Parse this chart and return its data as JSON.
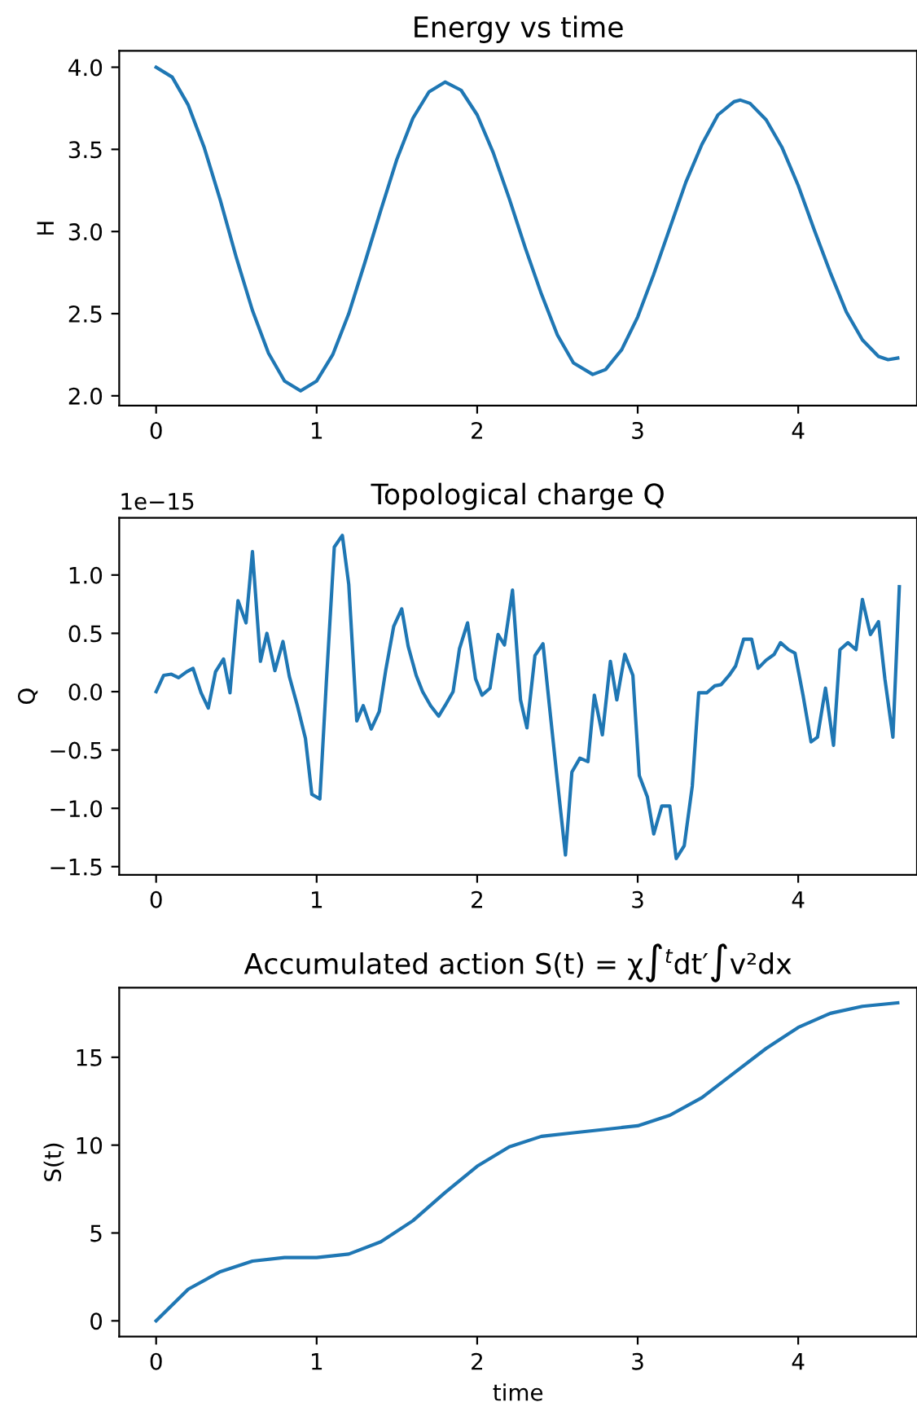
{
  "chart_data": [
    {
      "type": "line",
      "title": "Energy vs time",
      "ylabel": "H",
      "color": "#1f77b4",
      "xlim": [
        -0.23,
        4.74
      ],
      "ylim": [
        1.94,
        4.1
      ],
      "xticks": [
        0,
        1,
        2,
        3,
        4
      ],
      "yticks": [
        {
          "value": 2.0,
          "label": "2.0"
        },
        {
          "value": 2.5,
          "label": "2.5"
        },
        {
          "value": 3.0,
          "label": "3.0"
        },
        {
          "value": 3.5,
          "label": "3.5"
        },
        {
          "value": 4.0,
          "label": "4.0"
        }
      ],
      "grid": false,
      "x": [
        0,
        0.1,
        0.2,
        0.3,
        0.4,
        0.5,
        0.6,
        0.7,
        0.8,
        0.9,
        1.0,
        1.1,
        1.2,
        1.3,
        1.4,
        1.5,
        1.6,
        1.7,
        1.8,
        1.9,
        2.0,
        2.1,
        2.2,
        2.3,
        2.4,
        2.5,
        2.6,
        2.72,
        2.8,
        2.9,
        3.0,
        3.1,
        3.2,
        3.3,
        3.4,
        3.5,
        3.6,
        3.64,
        3.7,
        3.8,
        3.9,
        4.0,
        4.1,
        4.2,
        4.3,
        4.4,
        4.5,
        4.56,
        4.62
      ],
      "values": [
        4.0,
        3.94,
        3.77,
        3.51,
        3.19,
        2.84,
        2.52,
        2.26,
        2.09,
        2.03,
        2.09,
        2.25,
        2.5,
        2.81,
        3.13,
        3.44,
        3.69,
        3.85,
        3.91,
        3.86,
        3.71,
        3.48,
        3.2,
        2.9,
        2.62,
        2.37,
        2.2,
        2.13,
        2.16,
        2.28,
        2.48,
        2.74,
        3.02,
        3.3,
        3.53,
        3.71,
        3.79,
        3.8,
        3.78,
        3.68,
        3.51,
        3.28,
        3.01,
        2.75,
        2.51,
        2.34,
        2.24,
        2.22,
        2.23
      ]
    },
    {
      "type": "line",
      "title": "Topological charge Q",
      "ylabel": "Q",
      "annotations": [
        "1e−15"
      ],
      "color": "#1f77b4",
      "xlim": [
        -0.23,
        4.74
      ],
      "ylim": [
        -1.57,
        1.49
      ],
      "xticks": [
        0,
        1,
        2,
        3,
        4
      ],
      "yticks": [
        {
          "value": -1.5,
          "label": "−1.5"
        },
        {
          "value": -1.0,
          "label": "−1.0"
        },
        {
          "value": -0.5,
          "label": "−0.5"
        },
        {
          "value": 0.0,
          "label": "0.0"
        },
        {
          "value": 0.5,
          "label": "0.5"
        },
        {
          "value": 1.0,
          "label": "1.0"
        }
      ],
      "grid": false,
      "x": [
        0,
        0.047,
        0.095,
        0.14,
        0.19,
        0.23,
        0.28,
        0.325,
        0.37,
        0.42,
        0.46,
        0.51,
        0.56,
        0.6,
        0.65,
        0.69,
        0.74,
        0.79,
        0.83,
        0.88,
        0.93,
        0.97,
        1.02,
        1.06,
        1.11,
        1.16,
        1.2,
        1.25,
        1.29,
        1.34,
        1.39,
        1.43,
        1.48,
        1.53,
        1.57,
        1.62,
        1.66,
        1.71,
        1.76,
        1.8,
        1.85,
        1.89,
        1.94,
        1.99,
        2.03,
        2.08,
        2.13,
        2.17,
        2.22,
        2.27,
        2.31,
        2.36,
        2.41,
        2.45,
        2.5,
        2.55,
        2.59,
        2.64,
        2.69,
        2.73,
        2.78,
        2.83,
        2.87,
        2.92,
        2.97,
        3.01,
        3.06,
        3.1,
        3.15,
        3.2,
        3.24,
        3.29,
        3.34,
        3.38,
        3.43,
        3.48,
        3.52,
        3.57,
        3.61,
        3.66,
        3.71,
        3.75,
        3.8,
        3.85,
        3.89,
        3.94,
        3.98,
        4.03,
        4.08,
        4.12,
        4.17,
        4.22,
        4.26,
        4.31,
        4.36,
        4.4,
        4.45,
        4.5,
        4.54,
        4.59,
        4.63
      ],
      "values": [
        0,
        0.14,
        0.15,
        0.12,
        0.17,
        0.2,
        -0.01,
        -0.14,
        0.17,
        0.28,
        -0.01,
        0.78,
        0.59,
        1.2,
        0.26,
        0.5,
        0.18,
        0.43,
        0.13,
        -0.12,
        -0.4,
        -0.88,
        -0.92,
        0.07,
        1.24,
        1.34,
        0.92,
        -0.25,
        -0.12,
        -0.32,
        -0.17,
        0.18,
        0.56,
        0.71,
        0.39,
        0.14,
        0.0,
        -0.12,
        -0.21,
        -0.12,
        0.0,
        0.37,
        0.59,
        0.11,
        -0.03,
        0.03,
        0.49,
        0.4,
        0.87,
        -0.07,
        -0.31,
        0.31,
        0.41,
        -0.12,
        -0.77,
        -1.4,
        -0.69,
        -0.57,
        -0.6,
        -0.03,
        -0.37,
        0.26,
        -0.07,
        0.32,
        0.14,
        -0.72,
        -0.9,
        -1.22,
        -0.98,
        -0.98,
        -1.43,
        -1.32,
        -0.81,
        -0.01,
        -0.01,
        0.05,
        0.06,
        0.14,
        0.22,
        0.45,
        0.45,
        0.2,
        0.27,
        0.32,
        0.42,
        0.36,
        0.33,
        -0.03,
        -0.43,
        -0.39,
        0.03,
        -0.46,
        0.36,
        0.42,
        0.36,
        0.79,
        0.49,
        0.6,
        0.11,
        -0.39,
        0.9
      ]
    },
    {
      "type": "line",
      "title": "Accumulated action S(t) = χ∫$^{t}$dt′∫v²dx",
      "xlabel": "time",
      "ylabel": "S(t)",
      "color": "#1f77b4",
      "xlim": [
        -0.23,
        4.74
      ],
      "ylim": [
        -0.9,
        18.96
      ],
      "xticks": [
        0,
        1,
        2,
        3,
        4
      ],
      "yticks": [
        0,
        5,
        10,
        15
      ],
      "grid": false,
      "x": [
        0,
        0.2,
        0.4,
        0.6,
        0.8,
        1.0,
        1.2,
        1.4,
        1.6,
        1.8,
        2.0,
        2.2,
        2.4,
        2.6,
        2.8,
        3.0,
        3.2,
        3.4,
        3.6,
        3.8,
        4.0,
        4.2,
        4.4,
        4.62
      ],
      "values": [
        0,
        1.8,
        2.8,
        3.4,
        3.6,
        3.6,
        3.8,
        4.5,
        5.7,
        7.3,
        8.8,
        9.9,
        10.5,
        10.7,
        10.9,
        11.1,
        11.7,
        12.7,
        14.1,
        15.5,
        16.7,
        17.5,
        17.9,
        18.1
      ]
    }
  ]
}
